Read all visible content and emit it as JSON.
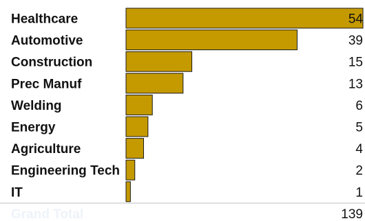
{
  "chart_data": {
    "type": "bar",
    "orientation": "horizontal",
    "categories": [
      "Healthcare",
      "Automotive",
      "Construction",
      "Prec Manuf",
      "Welding",
      "Energy",
      "Agriculture",
      "Engineering Tech",
      "IT"
    ],
    "values": [
      54,
      39,
      15,
      13,
      6,
      5,
      4,
      2,
      1
    ],
    "value_labels": [
      "54",
      "39",
      "15",
      "13",
      "6",
      "5",
      "4",
      "2",
      "1"
    ],
    "xlim": [
      0,
      54
    ],
    "grid": false,
    "legend": "none",
    "total": {
      "label": "Grand Total",
      "value": "139"
    }
  },
  "colors": {
    "bar_fill": "#c59a00",
    "bar_stroke": "#1a1a1a",
    "text": "#111111",
    "total_label": "#eef3f9",
    "rule": "#bfbfbf"
  }
}
